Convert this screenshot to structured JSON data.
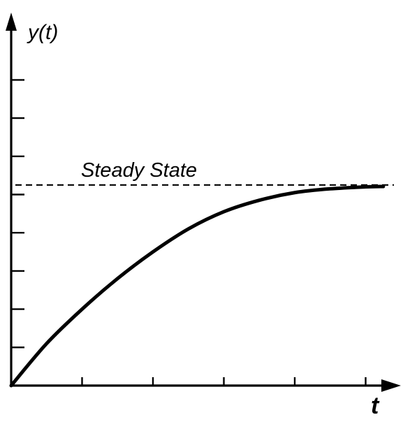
{
  "chart_data": {
    "type": "line",
    "title": "",
    "xlabel": "t",
    "ylabel": "y(t)",
    "xlim": [
      0,
      5.3
    ],
    "ylim": [
      0,
      9
    ],
    "x_ticks": [
      1,
      2,
      3,
      4,
      5
    ],
    "y_ticks": [
      1,
      2,
      3,
      4,
      5,
      6,
      7,
      8
    ],
    "grid": false,
    "legend": "none",
    "series": [
      {
        "x": [
          0,
          0.5,
          1,
          1.5,
          2,
          2.5,
          3,
          3.5,
          4,
          4.5,
          5,
          5.25
        ],
        "y": [
          0,
          1.1,
          2.0,
          2.8,
          3.5,
          4.1,
          4.55,
          4.85,
          5.05,
          5.15,
          5.2,
          5.21
        ]
      }
    ],
    "annotations": [
      {
        "text": "Steady State",
        "y": 5.25,
        "style": "dashed"
      }
    ]
  }
}
